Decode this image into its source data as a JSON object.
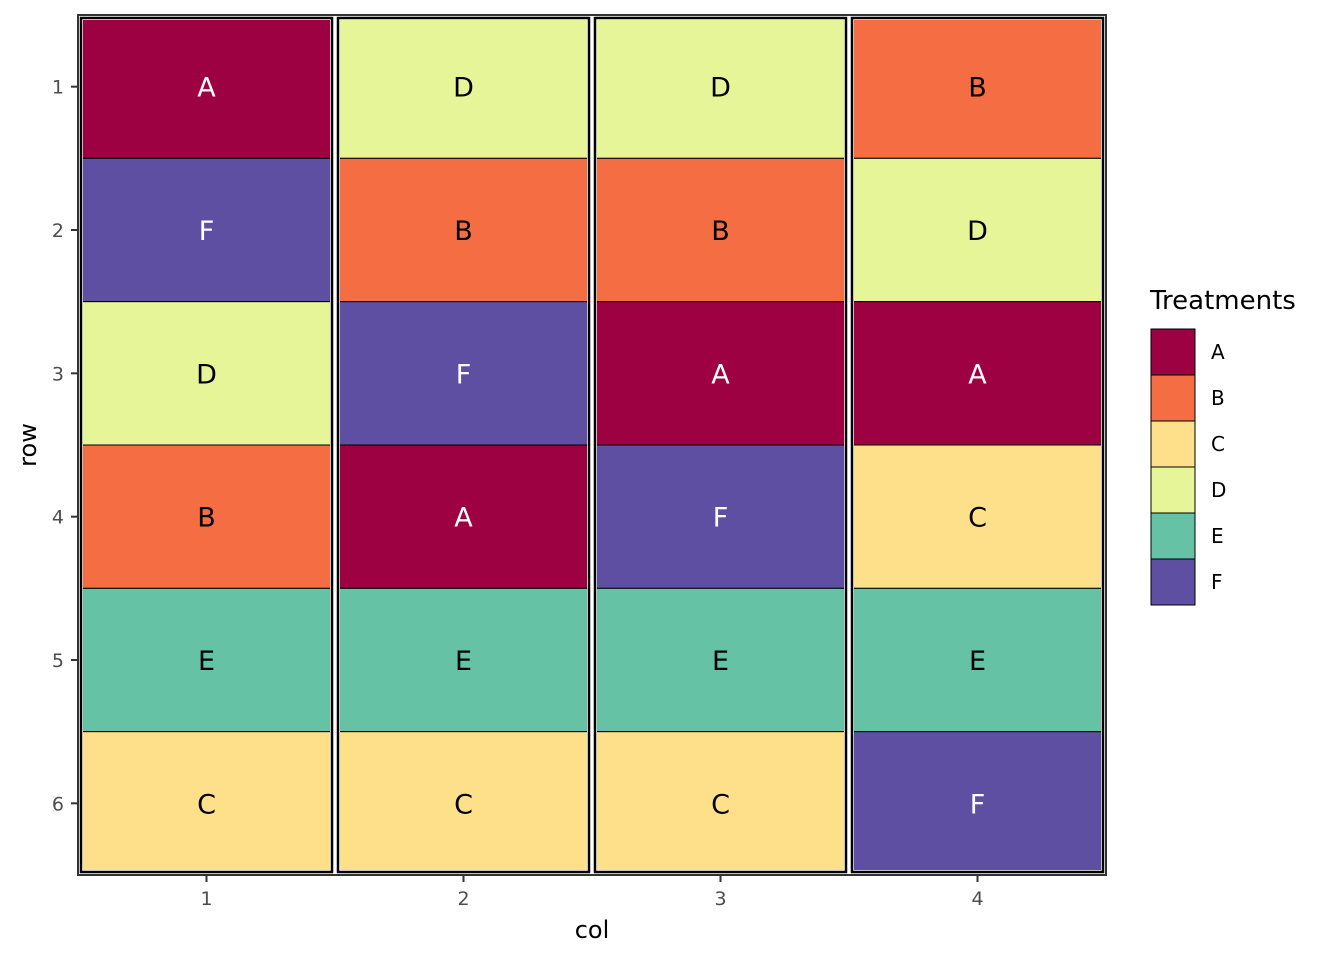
{
  "chart_data": {
    "type": "heatmap",
    "xlabel": "col",
    "ylabel": "row",
    "x_ticks": [
      "1",
      "2",
      "3",
      "4"
    ],
    "y_ticks": [
      "1",
      "2",
      "3",
      "4",
      "5",
      "6"
    ],
    "grid": false,
    "legend": {
      "title": "Treatments",
      "placement": "right",
      "entries": [
        {
          "label": "A",
          "color": "#9E0142"
        },
        {
          "label": "B",
          "color": "#F46D43"
        },
        {
          "label": "C",
          "color": "#FEE08B"
        },
        {
          "label": "D",
          "color": "#E6F598"
        },
        {
          "label": "E",
          "color": "#66C2A5"
        },
        {
          "label": "F",
          "color": "#5E4FA2"
        }
      ]
    },
    "light_text_treatments": [
      "A",
      "F"
    ],
    "cells": [
      {
        "col": 1,
        "row": 1,
        "treatment": "A"
      },
      {
        "col": 1,
        "row": 2,
        "treatment": "F"
      },
      {
        "col": 1,
        "row": 3,
        "treatment": "D"
      },
      {
        "col": 1,
        "row": 4,
        "treatment": "B"
      },
      {
        "col": 1,
        "row": 5,
        "treatment": "E"
      },
      {
        "col": 1,
        "row": 6,
        "treatment": "C"
      },
      {
        "col": 2,
        "row": 1,
        "treatment": "D"
      },
      {
        "col": 2,
        "row": 2,
        "treatment": "B"
      },
      {
        "col": 2,
        "row": 3,
        "treatment": "F"
      },
      {
        "col": 2,
        "row": 4,
        "treatment": "A"
      },
      {
        "col": 2,
        "row": 5,
        "treatment": "E"
      },
      {
        "col": 2,
        "row": 6,
        "treatment": "C"
      },
      {
        "col": 3,
        "row": 1,
        "treatment": "D"
      },
      {
        "col": 3,
        "row": 2,
        "treatment": "B"
      },
      {
        "col": 3,
        "row": 3,
        "treatment": "A"
      },
      {
        "col": 3,
        "row": 4,
        "treatment": "F"
      },
      {
        "col": 3,
        "row": 5,
        "treatment": "E"
      },
      {
        "col": 3,
        "row": 6,
        "treatment": "C"
      },
      {
        "col": 4,
        "row": 1,
        "treatment": "B"
      },
      {
        "col": 4,
        "row": 2,
        "treatment": "D"
      },
      {
        "col": 4,
        "row": 3,
        "treatment": "A"
      },
      {
        "col": 4,
        "row": 4,
        "treatment": "C"
      },
      {
        "col": 4,
        "row": 5,
        "treatment": "E"
      },
      {
        "col": 4,
        "row": 6,
        "treatment": "F"
      }
    ],
    "blocks": [
      {
        "col": 1
      },
      {
        "col": 2
      },
      {
        "col": 3
      },
      {
        "col": 4
      }
    ]
  }
}
